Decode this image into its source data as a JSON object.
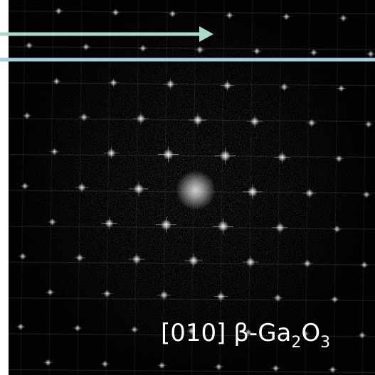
{
  "label": {
    "main": "[010] β-Ga",
    "sub1": "2",
    "mid": "O",
    "sub2": "3"
  }
}
